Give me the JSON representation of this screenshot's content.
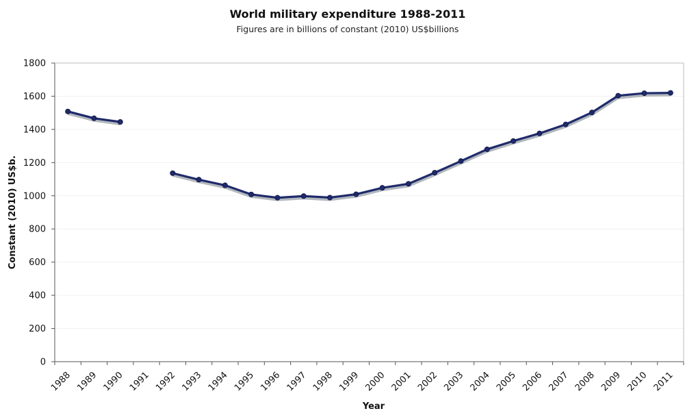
{
  "chart_data": {
    "type": "line",
    "title": "World military expenditure 1988-2011",
    "subtitle": "Figures are in billions of constant (2010) US$billions",
    "xlabel": "Year",
    "ylabel": "Constant (2010) US$b.",
    "categories": [
      "1988",
      "1989",
      "1990",
      "1991",
      "1992",
      "1993",
      "1994",
      "1995",
      "1996",
      "1997",
      "1998",
      "1999",
      "2000",
      "2001",
      "2002",
      "2003",
      "2004",
      "2005",
      "2006",
      "2007",
      "2008",
      "2009",
      "2010",
      "2011"
    ],
    "series": [
      {
        "values": [
          1508,
          1467,
          1445,
          null,
          1136,
          1097,
          1063,
          1008,
          988,
          998,
          989,
          1009,
          1048,
          1072,
          1139,
          1209,
          1280,
          1330,
          1376,
          1430,
          1502,
          1603,
          1618,
          1620
        ]
      }
    ],
    "ylim": [
      0,
      1800
    ],
    "yticks": [
      0,
      200,
      400,
      600,
      800,
      1000,
      1200,
      1400,
      1600,
      1800
    ],
    "grid": true,
    "legend": "none",
    "colors": {
      "line": "#1f2a6b",
      "line_shadow": "#9aa0a8",
      "marker": "#1f2a6b",
      "grid": "#f0f0f0",
      "axis": "#555555"
    }
  }
}
